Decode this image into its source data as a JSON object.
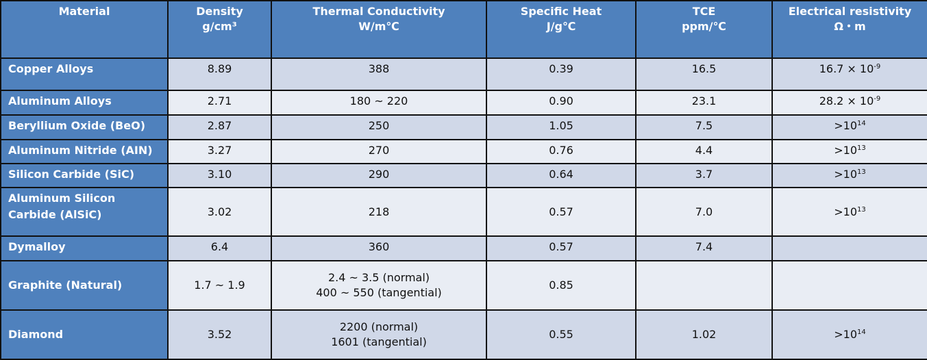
{
  "header": {
    "material": "Material",
    "density": [
      "Density",
      "g/cm³"
    ],
    "thermal": [
      "Thermal Conductivity",
      "W/m℃"
    ],
    "specific_heat": [
      "Specific Heat",
      "J/g℃"
    ],
    "tce": [
      "TCE",
      "ppm/℃"
    ],
    "resistivity": [
      "Electrical resistivity",
      "Ω・m"
    ]
  },
  "rows": [
    {
      "material": "Copper Alloys",
      "density": "8.89",
      "thermal": [
        "388"
      ],
      "specific_heat": "0.39",
      "tce": "16.5",
      "resistivity": {
        "base": "16.7 × 10",
        "exp": "-9"
      }
    },
    {
      "material": "Aluminum Alloys",
      "density": "2.71",
      "thermal": [
        "180 ~ 220"
      ],
      "specific_heat": "0.90",
      "tce": "23.1",
      "resistivity": {
        "base": "28.2 × 10",
        "exp": "-9"
      }
    },
    {
      "material": "Beryllium Oxide (BeO)",
      "density": "2.87",
      "thermal": [
        "250"
      ],
      "specific_heat": "1.05",
      "tce": "7.5",
      "resistivity": {
        "base": ">10",
        "exp": "14"
      }
    },
    {
      "material": "Aluminum Nitride (AIN)",
      "density": "3.27",
      "thermal": [
        "270"
      ],
      "specific_heat": "0.76",
      "tce": "4.4",
      "resistivity": {
        "base": ">10",
        "exp": "13"
      }
    },
    {
      "material": "Silicon Carbide (SiC)",
      "density": "3.10",
      "thermal": [
        "290"
      ],
      "specific_heat": "0.64",
      "tce": "3.7",
      "resistivity": {
        "base": ">10",
        "exp": "13"
      }
    },
    {
      "material": [
        "Aluminum Silicon",
        "Carbide (AlSiC)"
      ],
      "density": "3.02",
      "thermal": [
        "218"
      ],
      "specific_heat": "0.57",
      "tce": "7.0",
      "resistivity": {
        "base": ">10",
        "exp": "13"
      }
    },
    {
      "material": "Dymalloy",
      "density": "6.4",
      "thermal": [
        "360"
      ],
      "specific_heat": "0.57",
      "tce": "7.4",
      "resistivity": {
        "base": "",
        "exp": ""
      }
    },
    {
      "material": "Graphite (Natural)",
      "density": "1.7 ~ 1.9",
      "thermal": [
        "2.4 ~ 3.5 (normal)",
        "400 ~ 550 (tangential)"
      ],
      "specific_heat": "0.85",
      "tce": "",
      "resistivity": {
        "base": "",
        "exp": ""
      }
    },
    {
      "material": "Diamond",
      "density": "3.52",
      "thermal": [
        "2200 (normal)",
        "1601 (tangential)"
      ],
      "specific_heat": "0.55",
      "tce": "1.02",
      "resistivity": {
        "base": ">10",
        "exp": "14"
      }
    }
  ]
}
